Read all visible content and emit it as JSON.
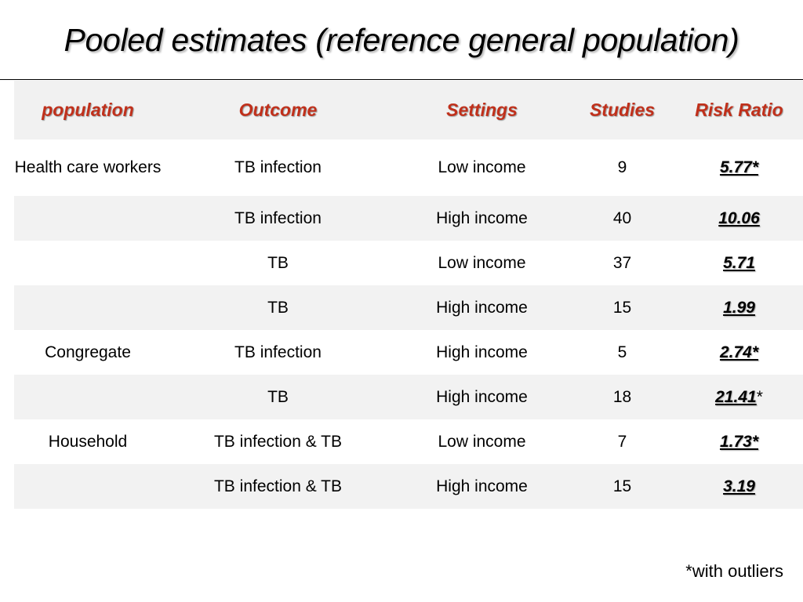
{
  "slide": {
    "title": "Pooled estimates (reference general population)",
    "footnote": "*with outliers"
  },
  "table": {
    "headers": {
      "population": "population",
      "outcome": "Outcome",
      "settings": "Settings",
      "studies": "Studies",
      "risk_ratio": "Risk Ratio"
    },
    "rows": [
      {
        "population": "Health care workers",
        "outcome": "TB infection",
        "settings": "Low income",
        "studies": "9",
        "risk_ratio": "5.77*",
        "rr_suffix": ""
      },
      {
        "population": "",
        "outcome": "TB infection",
        "settings": "High income",
        "studies": "40",
        "risk_ratio": "10.06",
        "rr_suffix": ""
      },
      {
        "population": "",
        "outcome": "TB",
        "settings": "Low income",
        "studies": "37",
        "risk_ratio": "5.71",
        "rr_suffix": ""
      },
      {
        "population": "",
        "outcome": "TB",
        "settings": "High income",
        "studies": "15",
        "risk_ratio": "1.99",
        "rr_suffix": ""
      },
      {
        "population": "Congregate",
        "outcome": "TB infection",
        "settings": "High income",
        "studies": "5",
        "risk_ratio": "2.74*",
        "rr_suffix": ""
      },
      {
        "population": "",
        "outcome": "TB",
        "settings": "High income",
        "studies": "18",
        "risk_ratio": "21.41",
        "rr_suffix": "*"
      },
      {
        "population": "Household",
        "outcome": "TB infection & TB",
        "settings": "Low income",
        "studies": "7",
        "risk_ratio": "1.73*",
        "rr_suffix": ""
      },
      {
        "population": "",
        "outcome": "TB infection & TB",
        "settings": "High income",
        "studies": "15",
        "risk_ratio": "3.19",
        "rr_suffix": ""
      }
    ]
  },
  "colors": {
    "header_text": "#c0301b",
    "shaded_row": "#f2f2f2",
    "header_row": "#f1f1f1"
  }
}
